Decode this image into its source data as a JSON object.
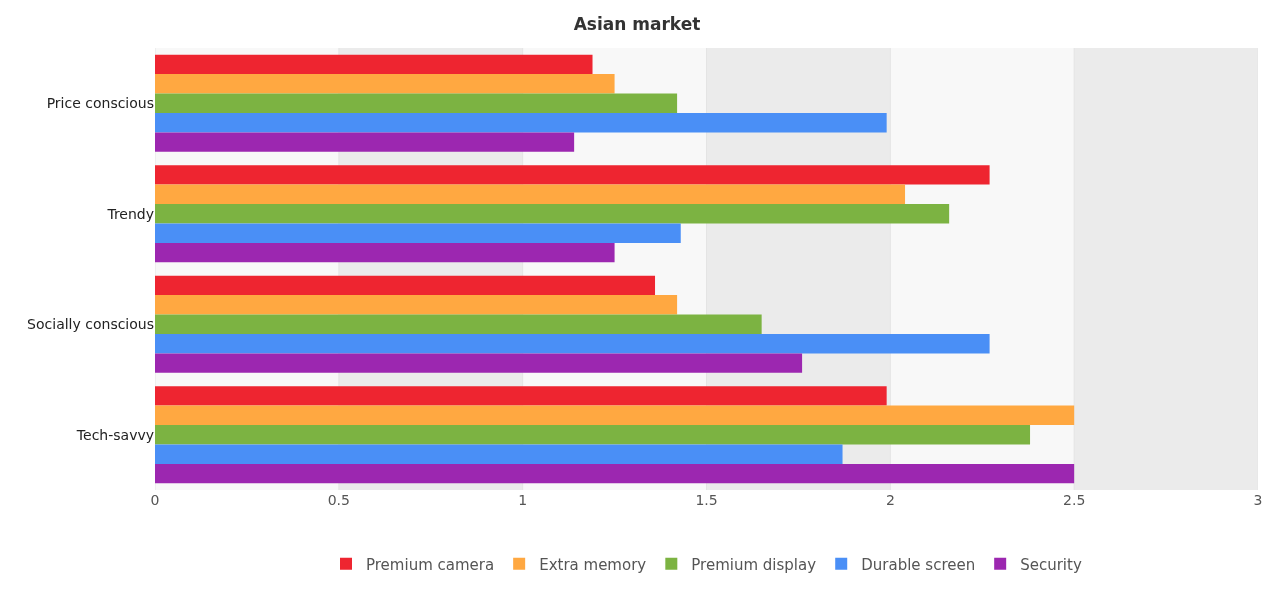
{
  "chart_data": {
    "type": "bar",
    "orientation": "horizontal",
    "title": "Asian market",
    "categories": [
      "Price conscious",
      "Trendy",
      "Socially conscious",
      "Tech-savvy"
    ],
    "series": [
      {
        "name": "Premium camera",
        "color": "#ee2530",
        "values": [
          1.19,
          2.27,
          1.36,
          1.99
        ]
      },
      {
        "name": "Extra memory",
        "color": "#ffa841",
        "values": [
          1.25,
          2.04,
          1.42,
          2.5
        ]
      },
      {
        "name": "Premium display",
        "color": "#7cb342",
        "values": [
          1.42,
          2.16,
          1.65,
          2.38
        ]
      },
      {
        "name": "Durable screen",
        "color": "#4a8ff6",
        "values": [
          1.99,
          1.43,
          2.27,
          1.87
        ]
      },
      {
        "name": "Security",
        "color": "#9c27b0",
        "values": [
          1.14,
          1.25,
          1.76,
          2.5
        ]
      }
    ],
    "xlim": [
      0,
      3
    ],
    "xticks": [
      0,
      0.5,
      1,
      1.5,
      2,
      2.5,
      3
    ],
    "grid": "x",
    "legend": "bottom"
  }
}
